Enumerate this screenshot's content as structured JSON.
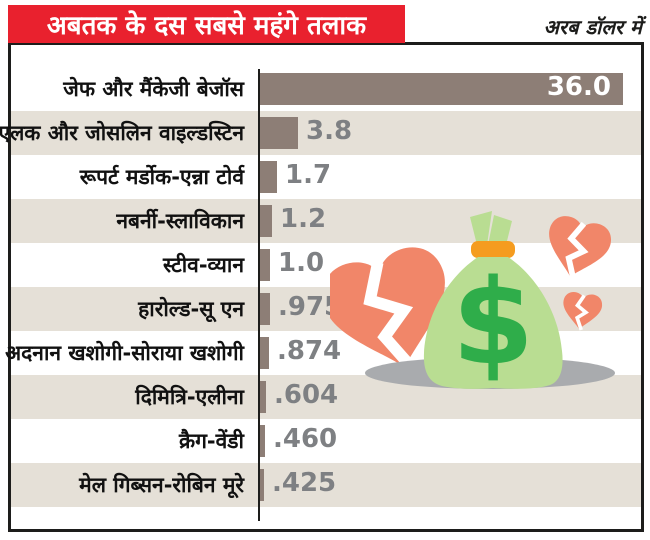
{
  "title": "अबतक के दस सबसे महंगे तलाक",
  "unit_label": "अरब डॉलर में",
  "chart_data": {
    "type": "bar",
    "orientation": "horizontal",
    "title": "अबतक के दस सबसे महंगे तलाक",
    "unit": "अरब डॉलर में (billion US dollars)",
    "categories": [
      "जेफ और मैंकेजी बेजॉस",
      "एलक और जोसलिन वाइल्डस्टिन",
      "रूपर्ट मर्डोक-एन्ना टोर्व",
      "नबर्नी-स्लाविकान",
      "स्टीव-व्यान",
      "हारोल्ड-सू एन",
      "अदनान खशोगी-सोराया खशोगी",
      "दिमित्रि-एलीना",
      "क्रैग-वेंडी",
      "मेल गिब्सन-रोबिन मूरे"
    ],
    "values": [
      36.0,
      3.8,
      1.7,
      1.2,
      1.0,
      0.975,
      0.874,
      0.604,
      0.46,
      0.425
    ],
    "value_labels": [
      "36.0",
      "3.8",
      "1.7",
      "1.2",
      "1.0",
      ".975",
      ".874",
      ".604",
      ".460",
      ".425"
    ],
    "xlim": [
      0,
      36
    ],
    "grid": false,
    "legend": "none",
    "value_label_position": [
      "inside-end",
      "outside-end",
      "outside-end",
      "outside-end",
      "outside-end",
      "outside-end",
      "outside-end",
      "outside-end",
      "outside-end",
      "outside-end"
    ]
  },
  "colors": {
    "title_background": "#e9212e",
    "title_text": "#ffffff",
    "bar": "#8d7e76",
    "row_stripe": "#e5e0d7",
    "value_text_outside": "#7e8083",
    "value_text_inside": "#ffffff",
    "frame_border": "#1d1d1b",
    "heart": "#f18669",
    "money_bag": "#b9dd92",
    "dollar_sign": "#2fad4a",
    "bag_band": "#f59c1f",
    "shadow": "#a9abae"
  },
  "decoration_icons": [
    "broken-heart-icon",
    "broken-heart-icon",
    "broken-heart-icon",
    "money-bag-icon",
    "dollar-sign-icon"
  ]
}
